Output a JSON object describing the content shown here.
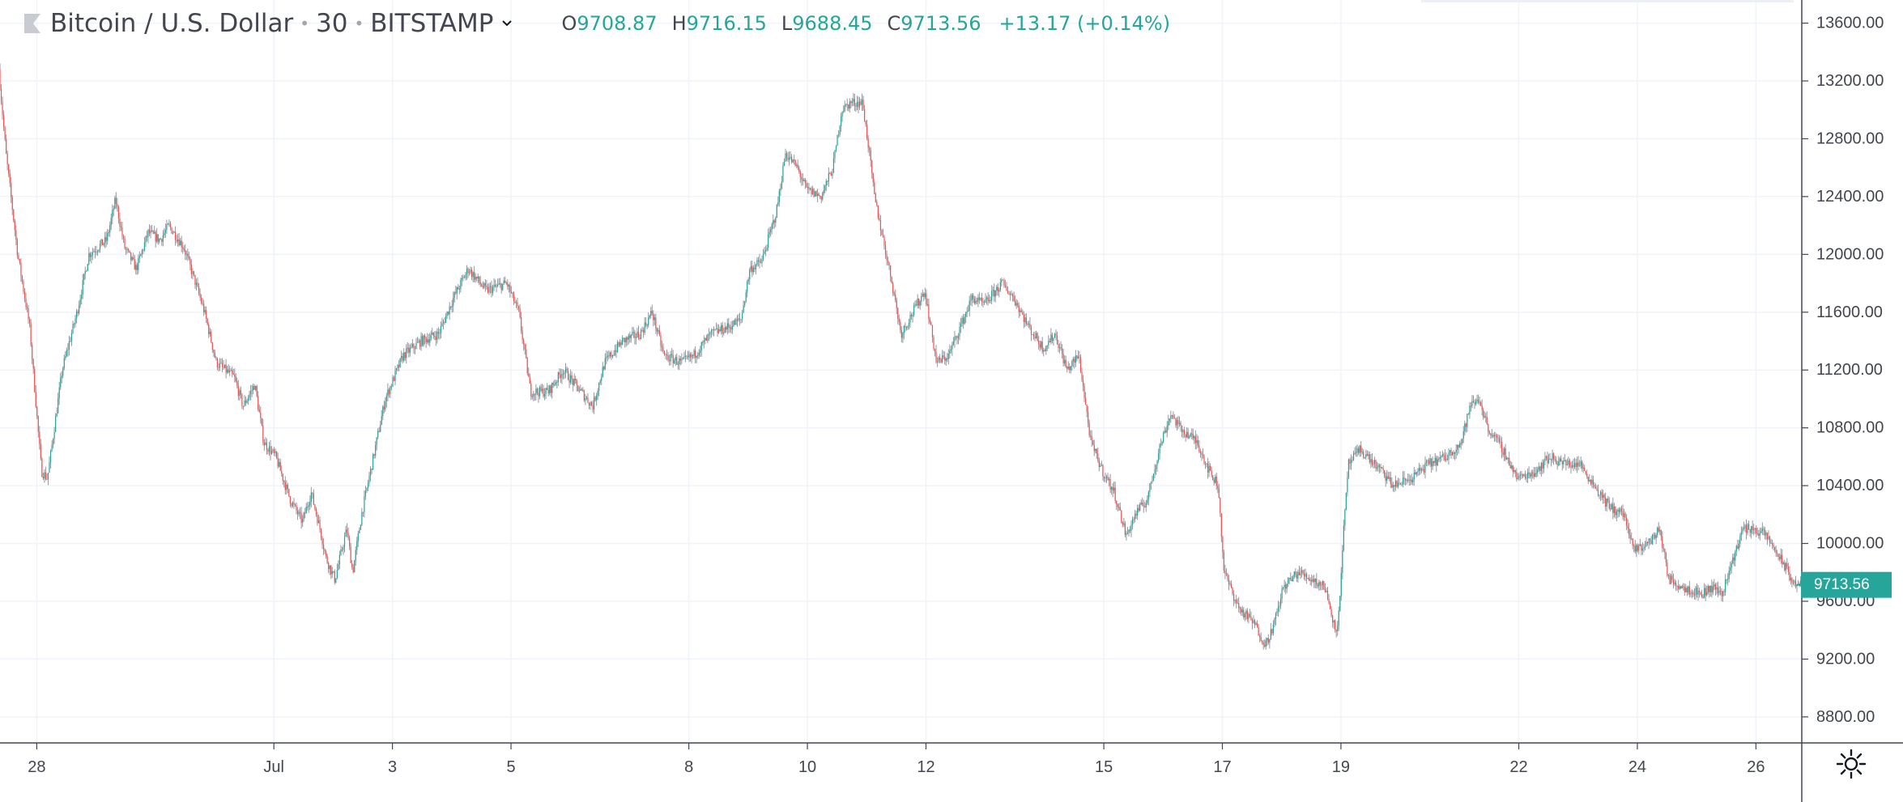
{
  "header": {
    "symbol": "Bitcoin / U.S. Dollar",
    "interval": "30",
    "exchange": "BITSTAMP",
    "open_label": "O",
    "open": "9708.87",
    "high_label": "H",
    "high": "9716.15",
    "low_label": "L",
    "low": "9688.45",
    "close_label": "C",
    "close": "9713.56",
    "change": "+13.17 (+0.14%)"
  },
  "colors": {
    "up": "#26a69a",
    "down": "#ef5350",
    "wick": "#9598a1",
    "grid": "#f0f3fa",
    "axis_text": "#434651",
    "last_price_badge": "#26a69a"
  },
  "icons": {
    "settings": "settings-icon",
    "symbol_flag": "symbol-flag-icon",
    "dropdown": "chevron-down-icon"
  },
  "chart_data": {
    "type": "candlestick",
    "title": "Bitcoin / U.S. Dollar",
    "interval_minutes": 30,
    "y_tick_labels": [
      "13600.00",
      "13200.00",
      "12800.00",
      "12400.00",
      "12000.00",
      "11600.00",
      "11200.00",
      "10800.00",
      "10400.00",
      "10000.00",
      "9600.00",
      "9200.00",
      "8800.00"
    ],
    "y_ticks": [
      13600,
      13200,
      12800,
      12400,
      12000,
      11600,
      11200,
      10800,
      10400,
      10000,
      9600,
      9200,
      8800
    ],
    "ylim": [
      8620,
      13760
    ],
    "x_tick_labels": [
      "28",
      "Jul",
      "3",
      "5",
      "8",
      "10",
      "12",
      "15",
      "17",
      "19",
      "22",
      "24",
      "26"
    ],
    "x_ticks_day": [
      -3,
      1,
      3,
      5,
      8,
      10,
      12,
      15,
      17,
      19,
      22,
      24,
      26
    ],
    "xlim_day": [
      -3.62,
      26.76
    ],
    "x_note": "x values are days of July 2019 (June 28 = -3)",
    "last_price": "9713.56",
    "last_price_value": 9713.56,
    "price_path": [
      [
        -3.62,
        13280
      ],
      [
        -3.5,
        12700
      ],
      [
        -3.3,
        12000
      ],
      [
        -3.1,
        11500
      ],
      [
        -2.9,
        10500
      ],
      [
        -2.8,
        10450
      ],
      [
        -2.55,
        11200
      ],
      [
        -2.3,
        11600
      ],
      [
        -2.1,
        12000
      ],
      [
        -1.8,
        12100
      ],
      [
        -1.65,
        12380
      ],
      [
        -1.5,
        12050
      ],
      [
        -1.3,
        11900
      ],
      [
        -1.1,
        12150
      ],
      [
        -0.9,
        12100
      ],
      [
        -0.75,
        12200
      ],
      [
        -0.5,
        12050
      ],
      [
        -0.3,
        11800
      ],
      [
        -0.15,
        11600
      ],
      [
        0.05,
        11250
      ],
      [
        0.35,
        11150
      ],
      [
        0.5,
        10950
      ],
      [
        0.7,
        11100
      ],
      [
        0.85,
        10700
      ],
      [
        1.05,
        10600
      ],
      [
        1.3,
        10300
      ],
      [
        1.5,
        10150
      ],
      [
        1.65,
        10350
      ],
      [
        1.8,
        10100
      ],
      [
        1.9,
        9900
      ],
      [
        2.05,
        9750
      ],
      [
        2.25,
        10100
      ],
      [
        2.35,
        9800
      ],
      [
        2.5,
        10200
      ],
      [
        2.7,
        10600
      ],
      [
        2.9,
        11000
      ],
      [
        3.2,
        11300
      ],
      [
        3.5,
        11400
      ],
      [
        3.8,
        11450
      ],
      [
        4.05,
        11700
      ],
      [
        4.3,
        11900
      ],
      [
        4.6,
        11750
      ],
      [
        4.95,
        11800
      ],
      [
        5.15,
        11600
      ],
      [
        5.35,
        11050
      ],
      [
        5.65,
        11050
      ],
      [
        5.9,
        11200
      ],
      [
        6.1,
        11100
      ],
      [
        6.4,
        10950
      ],
      [
        6.6,
        11250
      ],
      [
        6.9,
        11400
      ],
      [
        7.2,
        11450
      ],
      [
        7.4,
        11600
      ],
      [
        7.6,
        11300
      ],
      [
        7.9,
        11250
      ],
      [
        8.1,
        11300
      ],
      [
        8.4,
        11450
      ],
      [
        8.7,
        11500
      ],
      [
        8.9,
        11550
      ],
      [
        9.05,
        11900
      ],
      [
        9.25,
        11950
      ],
      [
        9.5,
        12300
      ],
      [
        9.65,
        12700
      ],
      [
        9.85,
        12600
      ],
      [
        10.0,
        12450
      ],
      [
        10.25,
        12400
      ],
      [
        10.45,
        12600
      ],
      [
        10.6,
        13000
      ],
      [
        10.75,
        13050
      ],
      [
        10.95,
        13050
      ],
      [
        11.05,
        12750
      ],
      [
        11.15,
        12400
      ],
      [
        11.3,
        12100
      ],
      [
        11.45,
        11800
      ],
      [
        11.6,
        11450
      ],
      [
        11.8,
        11600
      ],
      [
        12.0,
        11750
      ],
      [
        12.2,
        11250
      ],
      [
        12.4,
        11300
      ],
      [
        12.6,
        11500
      ],
      [
        12.8,
        11700
      ],
      [
        13.0,
        11650
      ],
      [
        13.3,
        11800
      ],
      [
        13.5,
        11700
      ],
      [
        13.75,
        11500
      ],
      [
        14.0,
        11350
      ],
      [
        14.2,
        11450
      ],
      [
        14.4,
        11200
      ],
      [
        14.6,
        11300
      ],
      [
        14.8,
        10700
      ],
      [
        15.0,
        10500
      ],
      [
        15.2,
        10350
      ],
      [
        15.4,
        10050
      ],
      [
        15.55,
        10200
      ],
      [
        15.75,
        10300
      ],
      [
        15.95,
        10650
      ],
      [
        16.15,
        10900
      ],
      [
        16.3,
        10800
      ],
      [
        16.6,
        10700
      ],
      [
        16.8,
        10500
      ],
      [
        16.95,
        10400
      ],
      [
        17.05,
        9800
      ],
      [
        17.3,
        9550
      ],
      [
        17.55,
        9450
      ],
      [
        17.75,
        9300
      ],
      [
        17.9,
        9450
      ],
      [
        18.05,
        9700
      ],
      [
        18.3,
        9800
      ],
      [
        18.55,
        9750
      ],
      [
        18.75,
        9700
      ],
      [
        18.9,
        9450
      ],
      [
        18.97,
        9400
      ],
      [
        19.05,
        10000
      ],
      [
        19.15,
        10550
      ],
      [
        19.35,
        10650
      ],
      [
        19.7,
        10500
      ],
      [
        19.9,
        10400
      ],
      [
        20.2,
        10450
      ],
      [
        20.5,
        10550
      ],
      [
        20.8,
        10600
      ],
      [
        21.05,
        10700
      ],
      [
        21.2,
        10950
      ],
      [
        21.35,
        11000
      ],
      [
        21.5,
        10800
      ],
      [
        21.75,
        10650
      ],
      [
        22.0,
        10450
      ],
      [
        22.3,
        10500
      ],
      [
        22.55,
        10600
      ],
      [
        22.8,
        10550
      ],
      [
        23.05,
        10550
      ],
      [
        23.3,
        10400
      ],
      [
        23.55,
        10250
      ],
      [
        23.8,
        10200
      ],
      [
        23.95,
        9950
      ],
      [
        24.2,
        10000
      ],
      [
        24.4,
        10100
      ],
      [
        24.55,
        9750
      ],
      [
        24.8,
        9700
      ],
      [
        25.1,
        9650
      ],
      [
        25.3,
        9700
      ],
      [
        25.45,
        9650
      ],
      [
        25.6,
        9850
      ],
      [
        25.8,
        10100
      ],
      [
        26.0,
        10100
      ],
      [
        26.2,
        10050
      ],
      [
        26.35,
        9950
      ],
      [
        26.5,
        9850
      ],
      [
        26.62,
        9750
      ],
      [
        26.7,
        9713.56
      ]
    ]
  }
}
